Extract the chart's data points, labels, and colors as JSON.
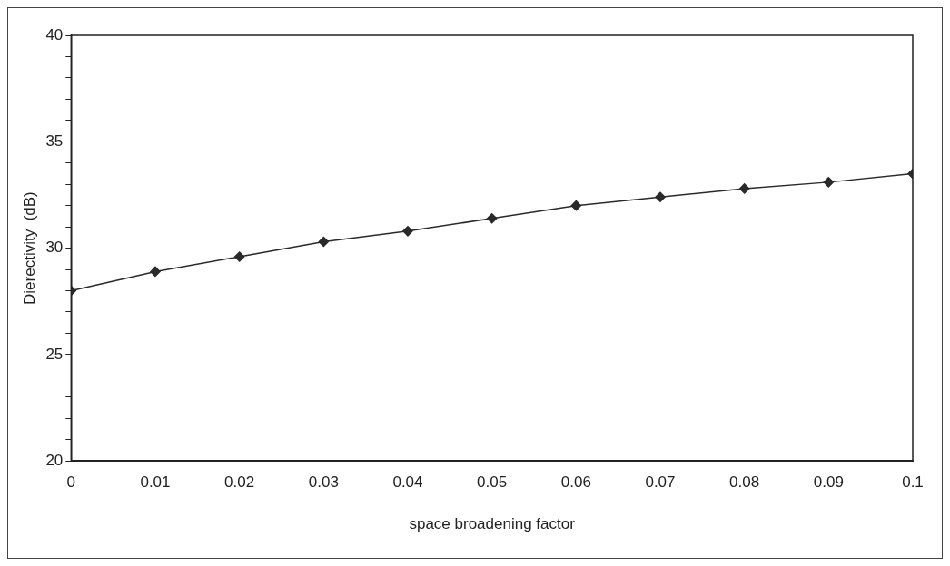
{
  "chart_data": {
    "type": "line",
    "xlabel": "space broadening factor",
    "ylabel": "Dierectivity  (dB)",
    "x": [
      0,
      0.01,
      0.02,
      0.03,
      0.04,
      0.05,
      0.06,
      0.07,
      0.08,
      0.09,
      0.1
    ],
    "series": [
      {
        "color": "#2a2a2a",
        "values": [
          28.0,
          28.9,
          29.6,
          30.3,
          30.8,
          31.4,
          32.0,
          32.4,
          32.8,
          33.1,
          33.5
        ]
      }
    ],
    "xlim": [
      0,
      0.1
    ],
    "xticks": [
      0,
      0.01,
      0.02,
      0.03,
      0.04,
      0.05,
      0.06,
      0.07,
      0.08,
      0.09,
      0.1
    ],
    "ylim": [
      20,
      40
    ],
    "yticks": [
      20,
      {
        "value": 21,
        "label": null
      },
      {
        "value": 22,
        "label": null
      },
      {
        "value": 23,
        "label": null
      },
      {
        "value": 24,
        "label": null
      },
      25,
      {
        "value": 26,
        "label": null
      },
      {
        "value": 27,
        "label": null
      },
      {
        "value": 28,
        "label": null
      },
      {
        "value": 29,
        "label": null
      },
      30,
      {
        "value": 31,
        "label": null
      },
      {
        "value": 32,
        "label": null
      },
      {
        "value": 33,
        "label": null
      },
      {
        "value": 34,
        "label": null
      },
      35,
      {
        "value": 36,
        "label": null
      },
      {
        "value": 37,
        "label": null
      },
      {
        "value": 38,
        "label": null
      },
      {
        "value": 39,
        "label": null
      },
      40
    ],
    "grid": false,
    "legend": false,
    "marker": "diamond",
    "line_style": "solid"
  }
}
